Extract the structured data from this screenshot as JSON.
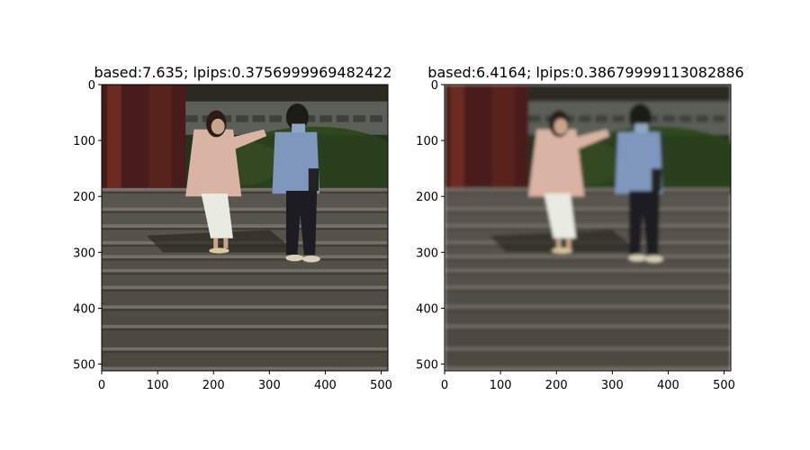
{
  "chart_data": [
    {
      "type": "image",
      "title": "based:7.635; lpips:0.3756999969482422",
      "xlim": [
        0,
        512
      ],
      "ylim": [
        512,
        0
      ],
      "xticks": [
        0,
        100,
        200,
        300,
        400,
        500
      ],
      "yticks": [
        0,
        100,
        200,
        300,
        400,
        500
      ],
      "image_description": "photo of a woman in a pink blouse and white skirt and a man in a blue shirt and mask walking down stone stairs in front of a temple gate",
      "blur": "sharp"
    },
    {
      "type": "image",
      "title": "based:6.4164; lpips:0.38679999113082886",
      "xlim": [
        0,
        512
      ],
      "ylim": [
        512,
        0
      ],
      "xticks": [
        0,
        100,
        200,
        300,
        400,
        500
      ],
      "yticks": [
        0,
        100,
        200,
        300,
        400,
        500
      ],
      "image_description": "blurred reconstruction of the same stair scene",
      "blur": "soft"
    }
  ]
}
